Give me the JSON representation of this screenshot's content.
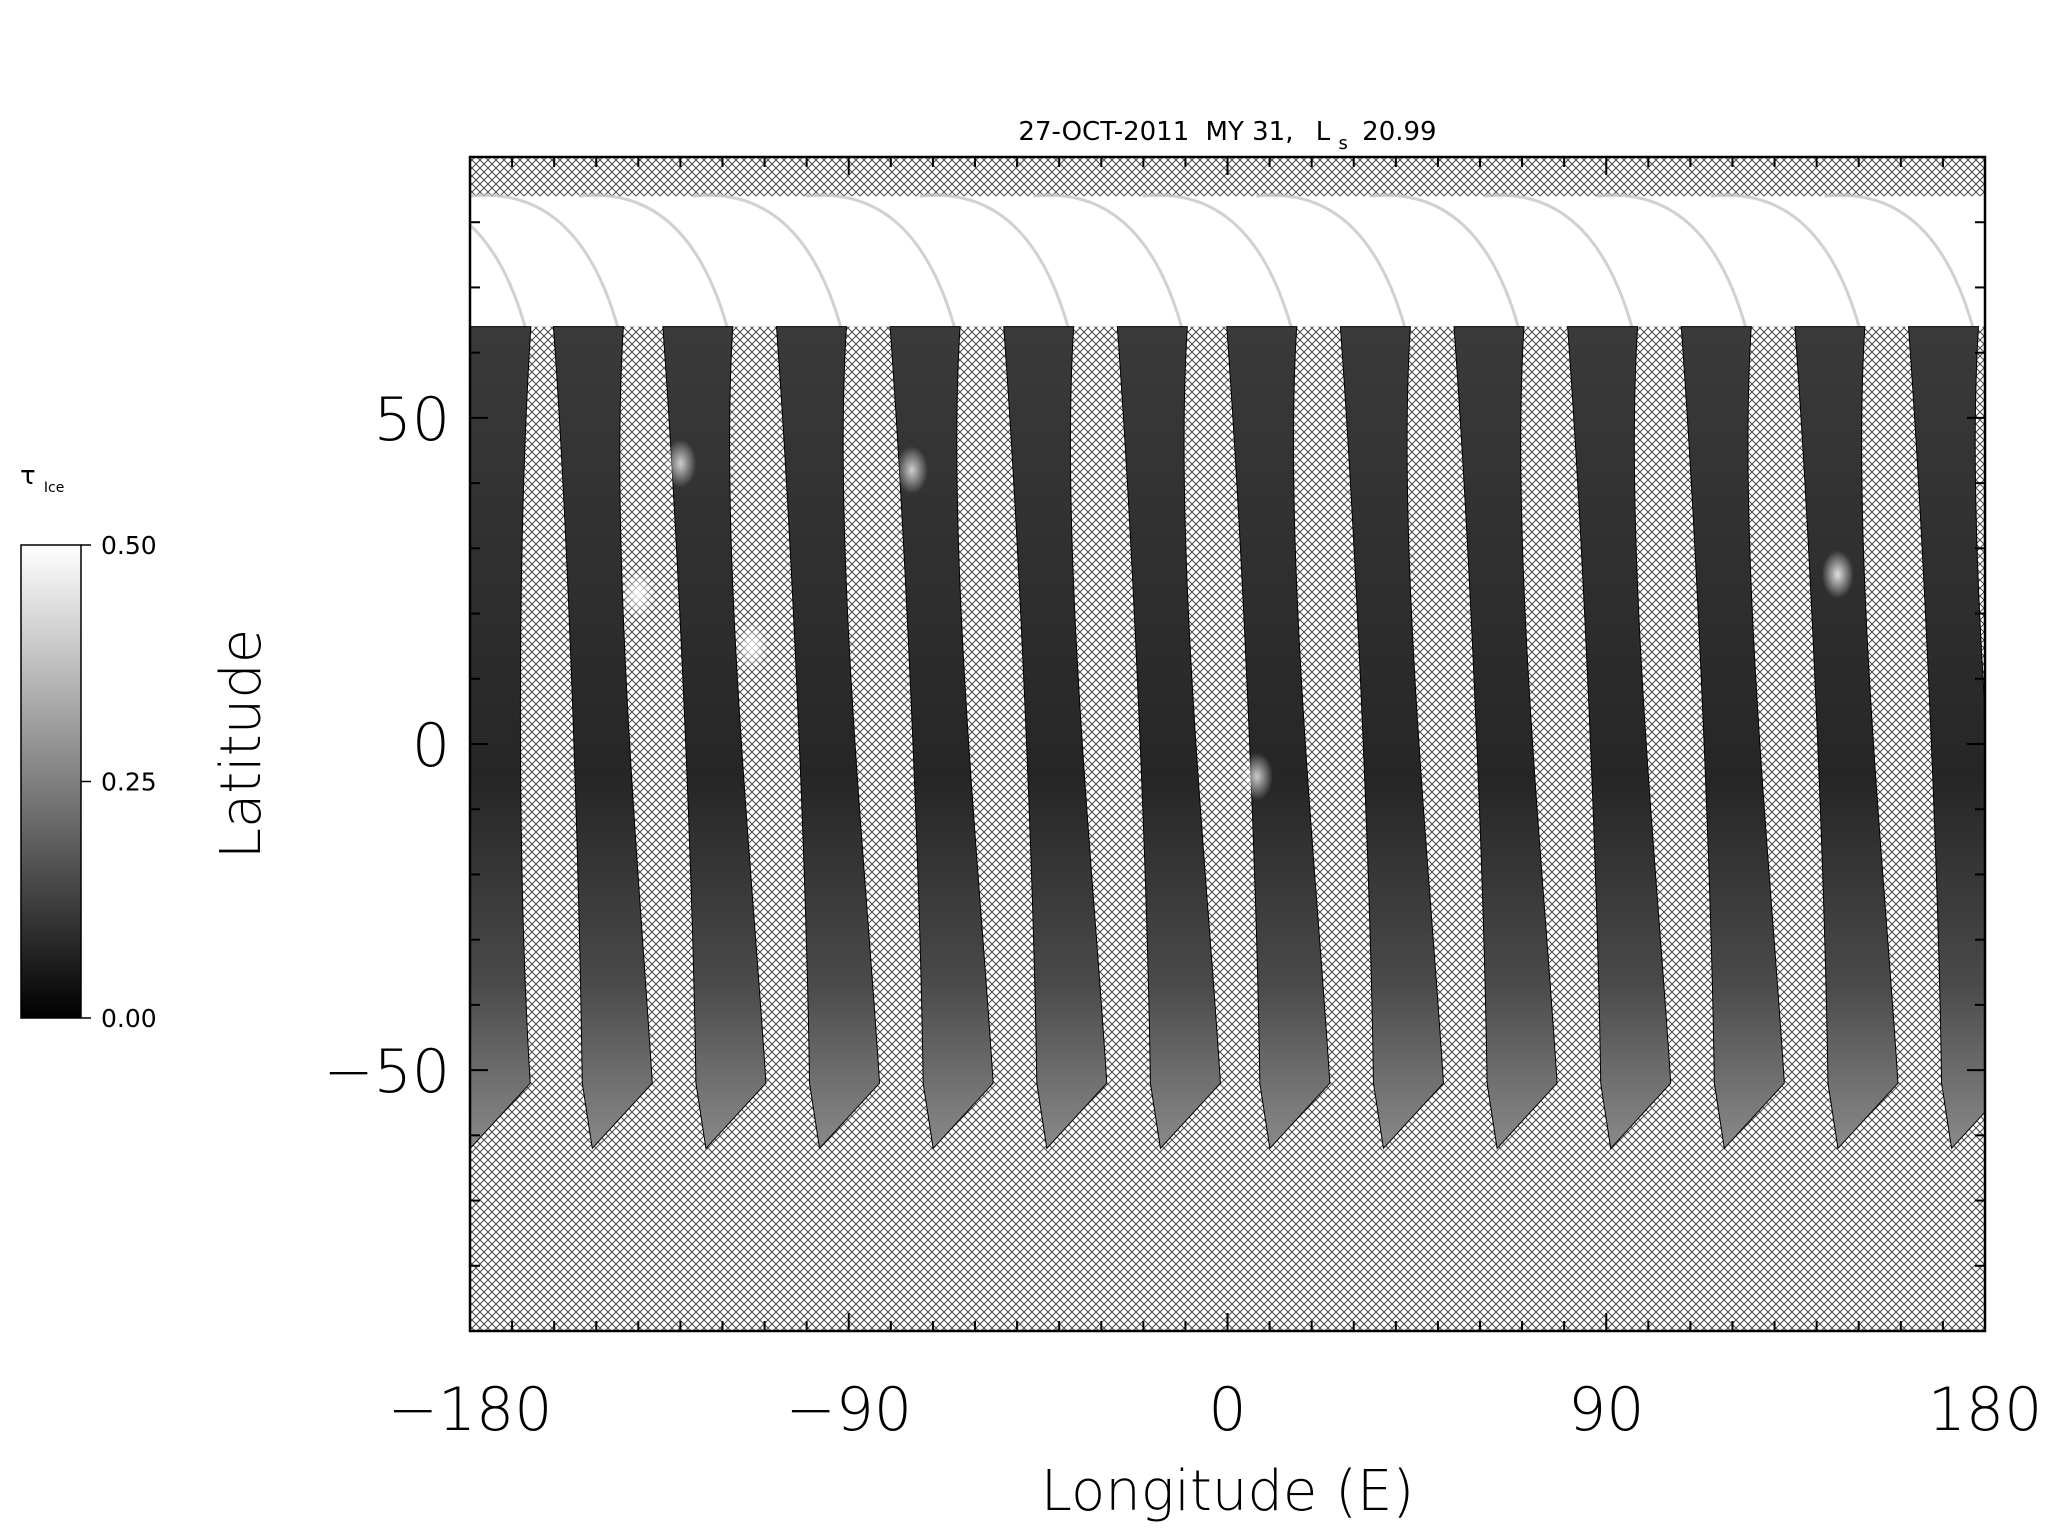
{
  "chart_data": {
    "type": "heatmap",
    "title": {
      "date": "27-OCT-2011",
      "mars_year": "MY 31,",
      "ls_symbol": "L",
      "ls_subscript": "s",
      "ls_value": "20.99"
    },
    "xlabel": "Longitude (E)",
    "ylabel": "Latitude",
    "xlim": [
      -180,
      180
    ],
    "ylim": [
      -90,
      90
    ],
    "x_ticks": [
      -180,
      -90,
      0,
      90,
      180
    ],
    "x_tick_labels": [
      "−180",
      "−90",
      "0",
      "90",
      "180"
    ],
    "y_ticks": [
      -50,
      0,
      50
    ],
    "y_tick_labels": [
      "−50",
      "0",
      "50"
    ],
    "x_minor_step": 10,
    "y_minor_step": 10,
    "grid": false,
    "no_data_fill": "crosshatch",
    "colorbar": {
      "label_symbol": "τ",
      "label_subscript": "Ice",
      "range": [
        0.0,
        0.5
      ],
      "tick_values": [
        0.0,
        0.25,
        0.5
      ],
      "tick_labels": [
        "0.00",
        "0.25",
        "0.50"
      ],
      "colormap": "grayscale",
      "low_color": "#000000",
      "high_color": "#ffffff",
      "placement": "left"
    },
    "polar_cap_band": {
      "lat_top": 84,
      "lat_bottom": 64,
      "value": 0.5
    },
    "swaths": [
      {
        "lon_top": -176,
        "lon_bottom": -174
      },
      {
        "lon_top": -154,
        "lon_bottom": -145
      },
      {
        "lon_top": -128,
        "lon_bottom": -118
      },
      {
        "lon_top": -101,
        "lon_bottom": -91
      },
      {
        "lon_top": -74,
        "lon_bottom": -64
      },
      {
        "lon_top": -47,
        "lon_bottom": -37
      },
      {
        "lon_top": -20,
        "lon_bottom": -10
      },
      {
        "lon_top": 6,
        "lon_bottom": 16
      },
      {
        "lon_top": 33,
        "lon_bottom": 43
      },
      {
        "lon_top": 60,
        "lon_bottom": 70
      },
      {
        "lon_top": 87,
        "lon_bottom": 97
      },
      {
        "lon_top": 114,
        "lon_bottom": 124
      },
      {
        "lon_top": 141,
        "lon_bottom": 151
      },
      {
        "lon_top": 168,
        "lon_bottom": 178
      }
    ],
    "bright_cloud_patches": [
      {
        "lon": -140,
        "lat": 23,
        "value": 0.45
      },
      {
        "lon": -113,
        "lat": 15,
        "value": 0.42
      },
      {
        "lon": 7,
        "lat": -5,
        "value": 0.35
      },
      {
        "lon": 145,
        "lat": 26,
        "value": 0.4
      },
      {
        "lon": -130,
        "lat": 43,
        "value": 0.35
      },
      {
        "lon": -75,
        "lat": 42,
        "value": 0.35
      }
    ]
  }
}
